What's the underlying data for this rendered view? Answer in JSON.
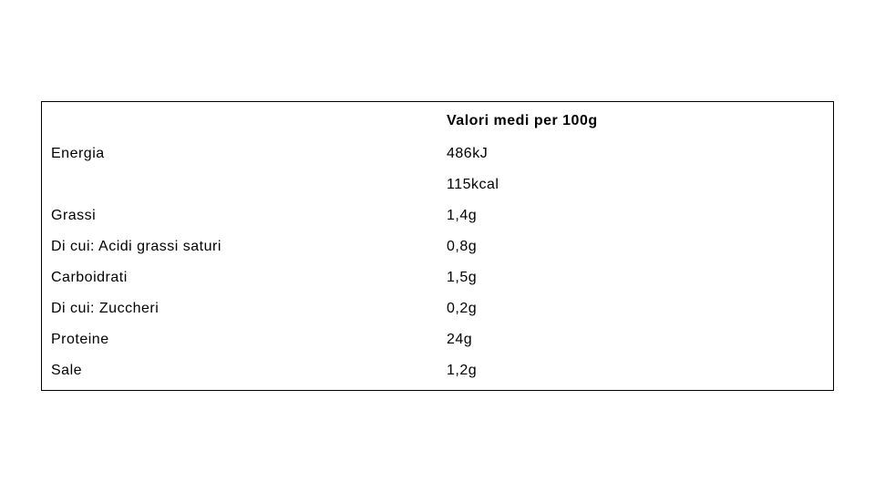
{
  "table": {
    "header": {
      "label": "",
      "value": "Valori medi per 100g"
    },
    "rows": [
      {
        "label": "Energia",
        "value": "486kJ"
      },
      {
        "label": "",
        "value": "115kcal"
      },
      {
        "label": "Grassi",
        "value": "1,4g"
      },
      {
        "label": "Di cui: Acidi grassi saturi",
        "value": "0,8g"
      },
      {
        "label": "Carboidrati",
        "value": "1,5g"
      },
      {
        "label": "Di cui: Zuccheri",
        "value": "0,2g"
      },
      {
        "label": "Proteine",
        "value": "24g"
      },
      {
        "label": "Sale",
        "value": "1,2g"
      }
    ],
    "style": {
      "border_color": "#000000",
      "background_color": "#ffffff",
      "text_color": "#000000",
      "font_size": 16,
      "header_font_weight": "bold",
      "body_font_weight": "normal",
      "letter_spacing": 0.5
    }
  }
}
